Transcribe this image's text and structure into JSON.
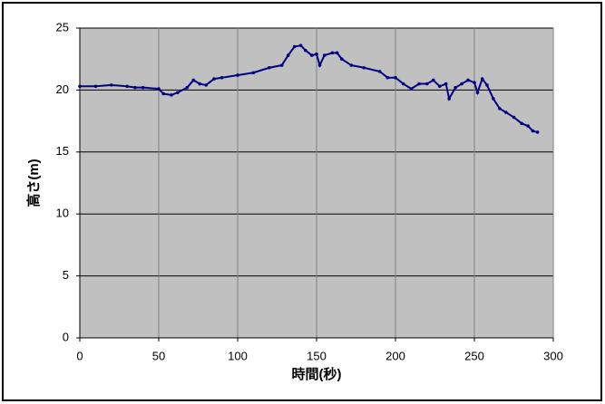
{
  "chart_data": {
    "type": "line",
    "x_label": "時間(秒)",
    "y_label": "高さ(m)",
    "x": [
      0,
      10,
      20,
      30,
      35,
      40,
      50,
      53,
      58,
      62,
      68,
      72,
      76,
      80,
      85,
      90,
      100,
      110,
      120,
      128,
      132,
      136,
      140,
      143,
      147,
      150,
      152,
      155,
      160,
      163,
      166,
      172,
      180,
      190,
      195,
      200,
      205,
      210,
      215,
      220,
      224,
      228,
      232,
      234,
      238,
      242,
      246,
      250,
      252,
      255,
      258,
      262,
      266,
      270,
      275,
      280,
      284,
      287,
      290
    ],
    "series": [
      {
        "name": "高さ",
        "color": "#000080",
        "values": [
          20.3,
          20.3,
          20.4,
          20.3,
          20.2,
          20.2,
          20.1,
          19.7,
          19.6,
          19.8,
          20.2,
          20.8,
          20.5,
          20.4,
          20.9,
          21.0,
          21.2,
          21.4,
          21.8,
          22.0,
          22.8,
          23.5,
          23.6,
          23.2,
          22.8,
          22.9,
          22.0,
          22.8,
          23.0,
          23.0,
          22.5,
          22.0,
          21.8,
          21.5,
          21.0,
          21.0,
          20.5,
          20.1,
          20.5,
          20.5,
          20.8,
          20.3,
          20.5,
          19.3,
          20.2,
          20.5,
          20.8,
          20.6,
          19.8,
          20.9,
          20.4,
          19.3,
          18.5,
          18.2,
          17.8,
          17.3,
          17.1,
          16.7,
          16.6
        ]
      }
    ],
    "xlim": [
      0,
      300
    ],
    "xticks": [
      0,
      50,
      100,
      150,
      200,
      250,
      300
    ],
    "ylim": [
      0,
      25
    ],
    "yticks": [
      0,
      5,
      10,
      15,
      20,
      25
    ],
    "grid": true,
    "plot_background": "#c0c0c0"
  }
}
